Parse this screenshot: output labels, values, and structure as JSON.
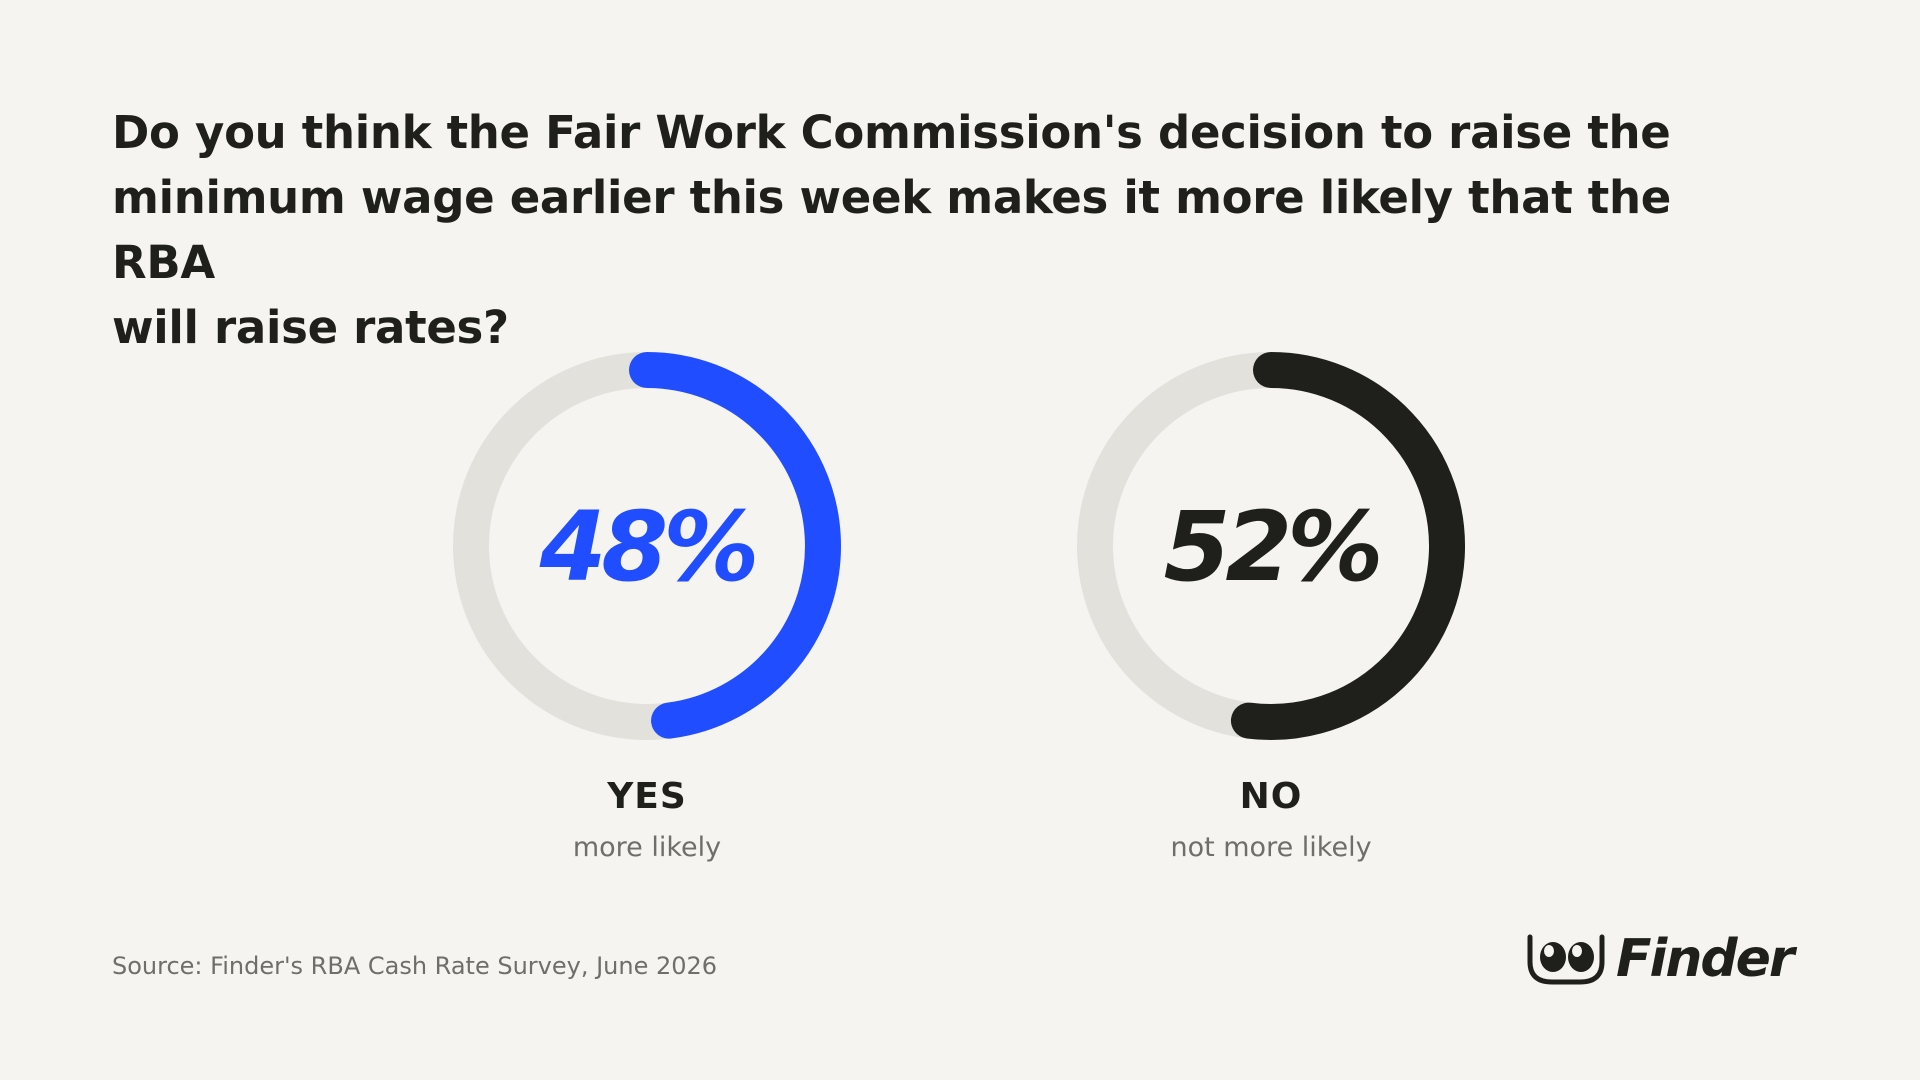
{
  "title_lines": [
    "Do you think the Fair Work Commission's decision to raise the",
    "minimum wage earlier this week makes it more likely that the RBA",
    "will raise rates?"
  ],
  "chart_data": {
    "type": "donut",
    "title": "Do you think the Fair Work Commission's decision to raise the minimum wage earlier this week makes it more likely that the RBA will raise rates?",
    "series": [
      {
        "label": "YES",
        "sublabel": "more likely",
        "value": 48,
        "value_label": "48%",
        "color": "#1f4dff"
      },
      {
        "label": "NO",
        "sublabel": "not more likely",
        "value": 52,
        "value_label": "52%",
        "color": "#1f201c"
      }
    ],
    "track_color": "#e3e1dc",
    "max": 100
  },
  "source": "Source: Finder's RBA Cash Rate Survey, June 2026",
  "logo": {
    "text": "Finder",
    "icon": "finder-eyes-logo-icon"
  }
}
